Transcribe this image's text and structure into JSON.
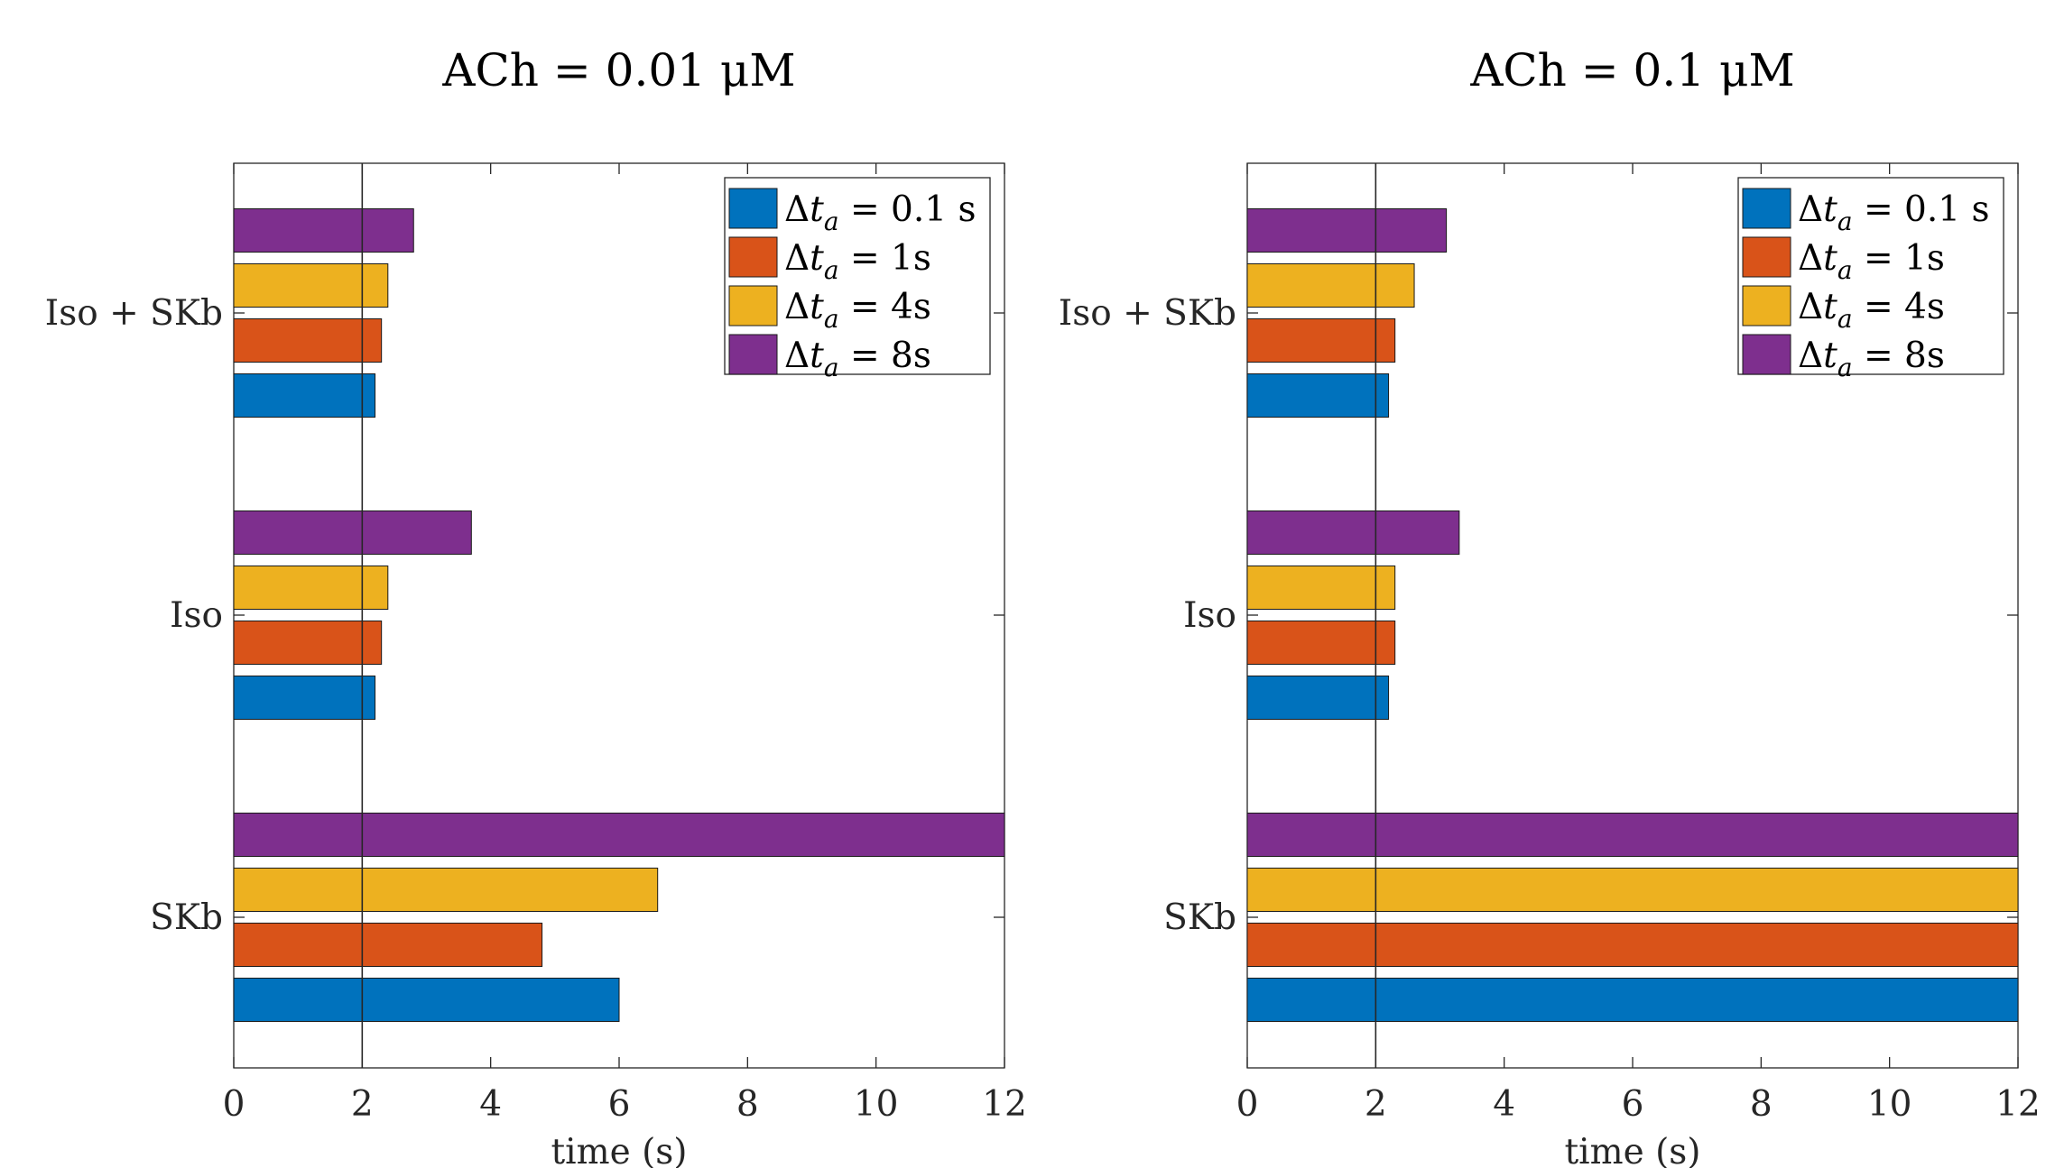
{
  "chart_data": [
    {
      "type": "bar",
      "orientation": "horizontal",
      "title": "ACh = 0.01 μM",
      "xlabel": "time (s)",
      "ylabel": "",
      "xlim": [
        0,
        12
      ],
      "xticks": [
        "0",
        "2",
        "4",
        "6",
        "8",
        "10",
        "12"
      ],
      "reference_line_x": 2,
      "grid": false,
      "legend_position": "top-right",
      "categories": [
        "Iso + SKb",
        "Iso",
        "SKb"
      ],
      "series": [
        {
          "name": "Δt_a = 0.1 s",
          "color": "#0072BD",
          "values": [
            2.2,
            2.2,
            6.0
          ]
        },
        {
          "name": "Δt_a = 1s",
          "color": "#D95319",
          "values": [
            2.3,
            2.3,
            4.8
          ]
        },
        {
          "name": "Δt_a = 4s",
          "color": "#EDB120",
          "values": [
            2.4,
            2.4,
            6.6
          ]
        },
        {
          "name": "Δt_a = 8s",
          "color": "#7E2F8E",
          "values": [
            2.8,
            3.7,
            12
          ]
        }
      ]
    },
    {
      "type": "bar",
      "orientation": "horizontal",
      "title": "ACh = 0.1 μM",
      "xlabel": "time (s)",
      "ylabel": "",
      "xlim": [
        0,
        12
      ],
      "xticks": [
        "0",
        "2",
        "4",
        "6",
        "8",
        "10",
        "12"
      ],
      "reference_line_x": 2,
      "grid": false,
      "legend_position": "top-right",
      "categories": [
        "Iso + SKb",
        "Iso",
        "SKb"
      ],
      "series": [
        {
          "name": "Δt_a = 0.1 s",
          "color": "#0072BD",
          "values": [
            2.2,
            2.2,
            12
          ]
        },
        {
          "name": "Δt_a = 1s",
          "color": "#D95319",
          "values": [
            2.3,
            2.3,
            12
          ]
        },
        {
          "name": "Δt_a = 4s",
          "color": "#EDB120",
          "values": [
            2.6,
            2.3,
            12
          ]
        },
        {
          "name": "Δt_a = 8s",
          "color": "#7E2F8E",
          "values": [
            3.1,
            3.3,
            12
          ]
        }
      ]
    }
  ],
  "legend_entries": [
    {
      "delta": "Δ",
      "t": "t",
      "sub": "a",
      "rest": " = 0.1 s"
    },
    {
      "delta": "Δ",
      "t": "t",
      "sub": "a",
      "rest": " = 1s"
    },
    {
      "delta": "Δ",
      "t": "t",
      "sub": "a",
      "rest": " = 4s"
    },
    {
      "delta": "Δ",
      "t": "t",
      "sub": "a",
      "rest": " = 8s"
    }
  ]
}
